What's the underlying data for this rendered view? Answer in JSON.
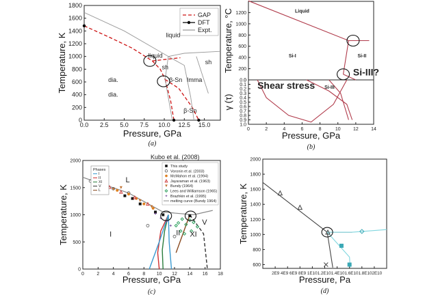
{
  "chart_data": [
    {
      "id": "a",
      "type": "line",
      "caption": "(a)",
      "xlabel": "Pressure, GPa",
      "ylabel": "Temperature, K",
      "xlim": [
        0,
        17
      ],
      "ylim": [
        0,
        1800
      ],
      "xticks": [
        0.0,
        2.5,
        5.0,
        7.5,
        10.0,
        12.5,
        15.0
      ],
      "xticklabels": [
        "0.0",
        "2.5",
        "5.0",
        "7.5",
        "10.0",
        "12.5",
        "15.0"
      ],
      "yticks": [
        0,
        200,
        400,
        600,
        800,
        1000,
        1200,
        1400,
        1600,
        1800
      ],
      "legend": {
        "placement": "top-right",
        "entries": [
          "GAP",
          "DFT",
          "Expt."
        ]
      },
      "series": [
        {
          "name": "GAP",
          "color": "#cc1111",
          "style": "dashed",
          "segments": [
            {
              "x": [
                0,
                3,
                6,
                8.5
              ],
              "y": [
                1480,
                1310,
                1130,
                930
              ]
            },
            {
              "x": [
                8.5,
                9.5,
                10.1
              ],
              "y": [
                930,
                800,
                640
              ]
            },
            {
              "x": [
                8.5,
                12.0
              ],
              "y": [
                930,
                980
              ]
            },
            {
              "x": [
                10.1,
                10.8,
                11.2
              ],
              "y": [
                640,
                300,
                0
              ]
            },
            {
              "x": [
                10.1,
                11.8,
                13.5,
                14.3
              ],
              "y": [
                640,
                500,
                200,
                0
              ]
            }
          ]
        },
        {
          "name": "DFT",
          "color": "#000000",
          "style": "marker",
          "x": [
            0,
            11.2,
            14.3
          ],
          "y": [
            1480,
            0,
            0
          ]
        },
        {
          "name": "Expt.",
          "color": "#999999",
          "style": "solid",
          "segments": [
            {
              "x": [
                0,
                5,
                10.5,
                12.5
              ],
              "y": [
                1690,
                1400,
                1000,
                860
              ]
            },
            {
              "x": [
                10.5,
                12.5,
                17
              ],
              "y": [
                1000,
                1050,
                1080
              ]
            },
            {
              "x": [
                10.1,
                10.5
              ],
              "y": [
                640,
                1000
              ]
            },
            {
              "x": [
                10.1,
                11.0
              ],
              "y": [
                640,
                0
              ]
            },
            {
              "x": [
                12.5,
                13.3
              ],
              "y": [
                860,
                360
              ]
            },
            {
              "x": [
                13.3,
                13.7
              ],
              "y": [
                360,
                0
              ]
            },
            {
              "x": [
                14.0,
                15.5
              ],
              "y": [
                1000,
                420
              ]
            }
          ]
        }
      ],
      "circles": [
        {
          "x": 8.2,
          "y": 930
        },
        {
          "x": 9.9,
          "y": 610
        }
      ],
      "annotations": [
        {
          "text": "liquid",
          "x": 10.2,
          "y": 1300,
          "color": "#999999"
        },
        {
          "text": "liquid",
          "x": 8.0,
          "y": 980,
          "color": "#cc1111"
        },
        {
          "text": "sh",
          "x": 9.7,
          "y": 800,
          "color": "#cc1111"
        },
        {
          "text": "sh",
          "x": 15.1,
          "y": 880,
          "color": "#999999"
        },
        {
          "text": "dia.",
          "x": 3.0,
          "y": 600,
          "color": "#999999"
        },
        {
          "text": "dia.",
          "x": 3.0,
          "y": 370,
          "color": "#cc1111"
        },
        {
          "text": "β-Sn",
          "x": 10.6,
          "y": 600,
          "color": "#999999"
        },
        {
          "text": "Imma",
          "x": 12.8,
          "y": 600,
          "color": "#999999"
        },
        {
          "text": "β-Sn",
          "x": 12.4,
          "y": 120,
          "color": "#cc1111"
        }
      ]
    },
    {
      "id": "b",
      "type": "line",
      "caption": "(b)",
      "xlabel": "Pressure, GPa",
      "ylabel_top": "Temperature, °C",
      "ylabel_bottom": "γ (τ)",
      "xlim": [
        0,
        14
      ],
      "xticks": [
        0,
        2,
        4,
        6,
        8,
        10,
        12,
        14
      ],
      "ylim_top": [
        0,
        1400
      ],
      "yticks_top": [
        0,
        200,
        400,
        600,
        800,
        1000,
        1200
      ],
      "ylim_bottom": [
        0,
        1.0
      ],
      "yticks_bottom": [
        0.0,
        0.1,
        0.2,
        0.3,
        0.4,
        0.5,
        0.6,
        0.7,
        0.8,
        0.9,
        1.0
      ],
      "series": [
        {
          "name": "",
          "color": "#b03a4a",
          "style": "solid",
          "segments_top": [
            {
              "x": [
                0,
                11.2
              ],
              "y": [
                1410,
                700
              ]
            },
            {
              "x": [
                11.2,
                13.5
              ],
              "y": [
                700,
                700
              ]
            },
            {
              "x": [
                11.2,
                10.6
              ],
              "y": [
                700,
                100
              ]
            },
            {
              "x": [
                10.6,
                12.0
              ],
              "y": [
                100,
                0
              ]
            }
          ],
          "segments_bottom": [
            {
              "x": [
                1.0,
                2.0,
                4.5,
                7.0,
                9.5,
                11.0
              ],
              "y": [
                0.0,
                0.4,
                0.8,
                0.95,
                0.55,
                0.0
              ]
            },
            {
              "x": [
                6.5,
                9.0,
                11.0,
                11.6
              ],
              "y": [
                0.0,
                0.25,
                0.55,
                0.9
              ]
            },
            {
              "x": [
                9.0,
                10.3,
                11.2
              ],
              "y": [
                0.0,
                0.3,
                0.9
              ]
            }
          ]
        }
      ],
      "circles": [
        {
          "x": 11.7,
          "y": 700
        },
        {
          "x": 10.6,
          "y": 100
        }
      ],
      "annotations": [
        {
          "text": "Liquid",
          "x": 5.2,
          "y": 1200,
          "color": "#2e7d32"
        },
        {
          "text": "Si-I",
          "x": 4.5,
          "y": 400,
          "color": "#2e7d32"
        },
        {
          "text": "Si-II",
          "x": 12.2,
          "y": 400,
          "color": "#2e7d32"
        },
        {
          "text": "Si-III?",
          "x": 11.7,
          "y": 80,
          "color": "#1f4e8c"
        },
        {
          "text": "Shear stress",
          "x": 1.0,
          "y_bottom": 0.2,
          "color": "#cc2222"
        },
        {
          "text": "Si-III",
          "x": 8.5,
          "y_bottom": 0.2,
          "color": "#2e7d32"
        }
      ]
    },
    {
      "id": "c",
      "type": "scatter",
      "caption": "(c)",
      "title": "Kubo et al. (2008)",
      "xlabel": "Pressure, GPa",
      "ylabel": "Temperature, K",
      "xlim": [
        0,
        18
      ],
      "ylim": [
        0,
        2000
      ],
      "xticks": [
        0,
        2,
        4,
        6,
        8,
        10,
        12,
        14,
        16,
        18
      ],
      "yticks": [
        0,
        500,
        1000,
        1500,
        2000
      ],
      "inset_legend": {
        "title": "Phases",
        "entries": [
          "I",
          "II",
          "XI",
          "V",
          "L"
        ]
      },
      "legend": {
        "placement": "top-right",
        "entries": [
          "This study",
          "Voronin et al. (2003)",
          "McMahon et al. (1994)",
          "Jayaraman et al. (1963)",
          "Bundy (1964)",
          "Lees and Williamson (1965)",
          "Brazhkin et al. (1995)",
          "melting curve (Bundy 1964)"
        ]
      },
      "melting_curve": {
        "x": [
          0,
          6,
          10.5,
          14.5,
          17
        ],
        "y": [
          1690,
          1400,
          1050,
          1000,
          1080
        ],
        "color": "#888888"
      },
      "series": [
        {
          "name": "This study",
          "marker": "square",
          "color": "#111111",
          "x": [
            5.5,
            6.5,
            7.5,
            9.5,
            10.5,
            14.0
          ],
          "y": [
            1350,
            1300,
            1200,
            1050,
            1000,
            980
          ]
        },
        {
          "name": "Voronin et al. (2003)",
          "marker": "circle-open",
          "color": "#555555",
          "x": [
            1,
            2,
            4,
            6,
            8.5,
            12
          ],
          "y": [
            1620,
            1570,
            1480,
            1400,
            800,
            600
          ]
        },
        {
          "name": "McMahon et al. (1994)",
          "marker": "circle",
          "color": "#e08020",
          "x": [
            3,
            4.5,
            6,
            7,
            8,
            9.2
          ],
          "y": [
            1550,
            1450,
            1380,
            1300,
            1200,
            1120
          ]
        },
        {
          "name": "Jayaraman et al. (1963)",
          "marker": "triangle",
          "color": "#d04040",
          "x": [
            2.5,
            3.5,
            5,
            6.8,
            8.5
          ],
          "y": [
            1580,
            1510,
            1420,
            1320,
            1200
          ]
        },
        {
          "name": "Bundy (1964)",
          "marker": "triangle-down",
          "color": "#c07030",
          "x": [
            4,
            5,
            7.5,
            9.0
          ],
          "y": [
            1470,
            1500,
            1260,
            1150
          ]
        },
        {
          "name": "Lees and Williamson (1965)",
          "marker": "diamond",
          "color": "#30a060",
          "x": [
            12.5,
            13.0,
            13.5,
            14.0,
            14.5,
            15.0,
            14.2,
            13.3,
            12.8,
            12.2
          ],
          "y": [
            850,
            920,
            820,
            900,
            860,
            780,
            700,
            650,
            700,
            800
          ]
        },
        {
          "name": "Brazhkin et al. (1995)",
          "marker": "star",
          "color": "#7a50a0",
          "x": [
            9.5,
            10.2,
            11.0,
            11.5
          ],
          "y": [
            1020,
            940,
            880,
            800
          ]
        }
      ],
      "boundaries": [
        {
          "color": "#d03030",
          "x": [
            11.2,
            10.2,
            9.8,
            10.0
          ],
          "y": [
            1000,
            700,
            300,
            0
          ]
        },
        {
          "color": "#2a7c3c",
          "x": [
            11.2,
            10.7,
            10.4,
            10.5
          ],
          "y": [
            1000,
            700,
            350,
            0
          ]
        },
        {
          "color": "#3a99d0",
          "x": [
            11.2,
            10.0,
            8.7
          ],
          "y": [
            1000,
            500,
            0
          ]
        },
        {
          "color": "#3a99d0",
          "x": [
            11.2,
            11.3,
            11.6
          ],
          "y": [
            1000,
            500,
            0
          ]
        },
        {
          "color": "#8a4a20",
          "x": [
            14.0,
            12.2
          ],
          "y": [
            1000,
            300
          ]
        },
        {
          "color": "#333333",
          "style": "dashed",
          "x": [
            14.0,
            15.8,
            16.3
          ],
          "y": [
            1000,
            650,
            0
          ]
        }
      ],
      "circles": [
        {
          "x": 10.9,
          "y": 980
        },
        {
          "x": 14.1,
          "y": 980
        }
      ],
      "annotations": [
        {
          "text": "L",
          "x": 5.6,
          "y": 1600
        },
        {
          "text": "I",
          "x": 3.5,
          "y": 600
        },
        {
          "text": "II",
          "x": 12.2,
          "y": 620
        },
        {
          "text": "XI",
          "x": 14.0,
          "y": 600
        },
        {
          "text": "V",
          "x": 15.6,
          "y": 820
        }
      ]
    },
    {
      "id": "d",
      "type": "line",
      "caption": "(d)",
      "xlabel": "Pressure, Pa",
      "ylabel": "Temperature, K",
      "xlim": [
        0,
        20000000000.0
      ],
      "ylim": [
        550,
        2000
      ],
      "xticklabels": [
        "2E9",
        "4E9",
        "6E9",
        "8E9",
        "1E10",
        "1.2E10",
        "1.4E10",
        "1.6E10",
        "1.8E10",
        "2E10"
      ],
      "xtickprint": "2E9 4E9 6E9 8E9 1E101.2E101.4E101.6E101.8E102E10",
      "yticks": [
        600,
        800,
        1000,
        1200,
        1400,
        1600,
        1800,
        2000
      ],
      "series": [
        {
          "name": "",
          "color": "#444444",
          "style": "solid",
          "segments": [
            {
              "x": [
                0,
                10400000000.0
              ],
              "y": [
                1690,
                1030
              ]
            },
            {
              "x": [
                10400000000.0,
                11300000000.0
              ],
              "y": [
                1030,
                560
              ]
            },
            {
              "x": [
                10400000000.0,
                14400000000.0
              ],
              "y": [
                1030,
                1030
              ]
            }
          ]
        },
        {
          "name": "",
          "color": "#7fd6df",
          "style": "solid",
          "segments": [
            {
              "x": [
                10400000000.0,
                14400000000.0
              ],
              "y": [
                1030,
                1030
              ]
            },
            {
              "x": [
                14400000000.0,
                20000000000.0
              ],
              "y": [
                1030,
                1065
              ]
            },
            {
              "x": [
                10400000000.0,
                14000000000.0
              ],
              "y": [
                1030,
                700
              ]
            },
            {
              "x": [
                14000000000.0,
                14100000000.0
              ],
              "y": [
                700,
                560
              ]
            }
          ]
        }
      ],
      "markers": [
        {
          "x": 2800000000.0,
          "y": 1550,
          "shape": "triangle",
          "color": "#444444"
        },
        {
          "x": 6000000000.0,
          "y": 1360,
          "shape": "triangle",
          "color": "#444444"
        },
        {
          "x": 10500000000.0,
          "y": 1030,
          "shape": "triangle",
          "color": "#444444"
        },
        {
          "x": 10200000000.0,
          "y": 600,
          "shape": "cross",
          "color": "#444444"
        },
        {
          "x": 12700000000.0,
          "y": 850,
          "shape": "square",
          "color": "#3aa8b5"
        },
        {
          "x": 14000000000.0,
          "y": 600,
          "shape": "square",
          "color": "#3aa8b5"
        },
        {
          "x": 16000000000.0,
          "y": 1040,
          "shape": "diamond",
          "color": "#3aa8b5"
        }
      ],
      "circles": [
        {
          "x": 10400000000.0,
          "y": 1030
        }
      ]
    }
  ]
}
